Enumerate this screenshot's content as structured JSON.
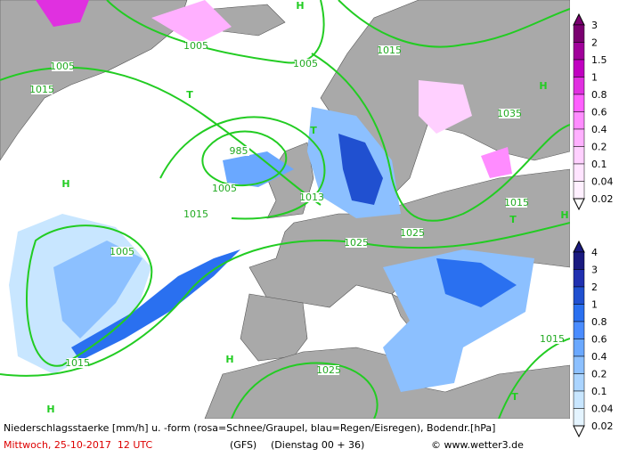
{
  "footer": {
    "line1": "Niederschlagsstaerke [mm/h] u. -form (rosa=Schnee/Graupel, blau=Regen/Eisregen), Bodendr.[hPa]",
    "date": "Mittwoch, 25-10-2017  12 UTC",
    "model": "(GFS)",
    "run": "(Dienstag 00 + 36)",
    "credit": "© www.wetter3.de"
  },
  "legend": {
    "snow": [
      "3",
      "2",
      "1.5",
      "1",
      "0.8",
      "0.6",
      "0.4",
      "0.2",
      "0.1",
      "0.04",
      "0.02"
    ],
    "rain": [
      "4",
      "3",
      "2",
      "1",
      "0.8",
      "0.6",
      "0.4",
      "0.2",
      "0.1",
      "0.04",
      "0.02"
    ]
  },
  "map": {
    "isobar_labels": [
      "1005",
      "1005",
      "1015",
      "1005",
      "1015",
      "985",
      "1005",
      "1013",
      "1015",
      "1025",
      "1025",
      "1015",
      "1035",
      "1005",
      "1015",
      "1025",
      "1015"
    ],
    "pressure_centers": [
      "H",
      "H",
      "T",
      "T",
      "T",
      "H",
      "H",
      "H",
      "H",
      "T"
    ]
  }
}
